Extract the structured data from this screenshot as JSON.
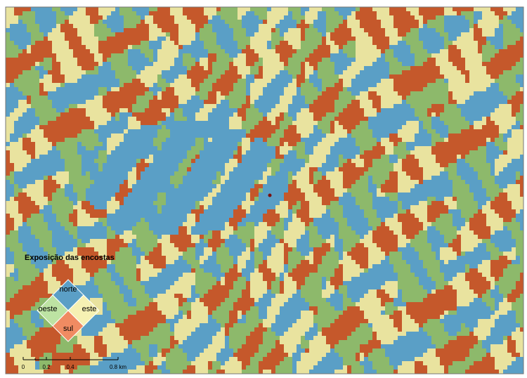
{
  "legend": {
    "title": "Exposição das encostas",
    "classes": {
      "north": "norte",
      "west": "oeste",
      "east": "este",
      "south": "sul"
    }
  },
  "scale_bar": {
    "labels": [
      "0",
      "0.2",
      "0.4",
      "0.8 km"
    ]
  }
}
